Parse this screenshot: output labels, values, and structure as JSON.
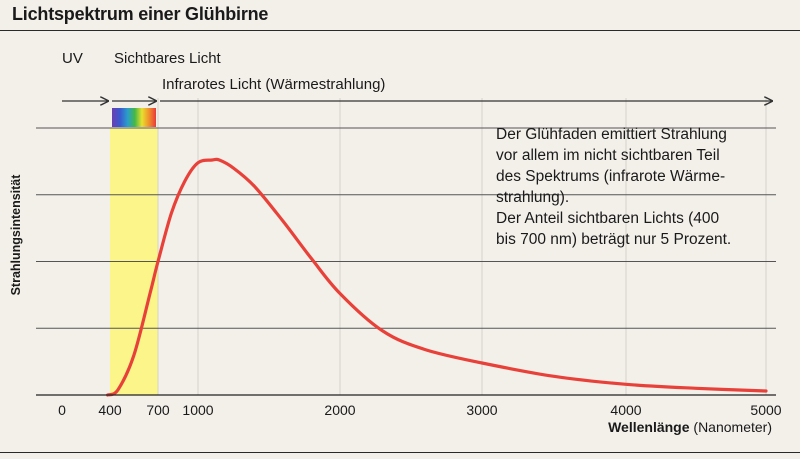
{
  "page_title": "Lichtspektrum einer Glühbirne",
  "annotation_lines": [
    "Der Glühfaden emittiert Strahlung",
    "vor allem im nicht sichtbaren Teil",
    "des Spektrums (infrarote Wärme-",
    "strahlung).",
    "Der Anteil sichtbaren Lichts (400",
    "bis 700 nm) beträgt nur 5 Prozent."
  ],
  "colors": {
    "curve": "#e8413a",
    "visible_band": "#fbf58a",
    "grid": "#555555",
    "axis": "#222222"
  },
  "chart_data": {
    "type": "line",
    "title": "Lichtspektrum einer Glühbirne",
    "xlabel_bold": "Wellenlänge",
    "xlabel_unit": "(Nanometer)",
    "ylabel": "Strahlungsintensität",
    "x_ticks": [
      0,
      400,
      700,
      1000,
      2000,
      3000,
      4000,
      5000
    ],
    "x_tick_labels": [
      "0",
      "400",
      "700",
      "1000",
      "2000",
      "3000",
      "4000",
      "5000"
    ],
    "xlim": [
      0,
      5000
    ],
    "ylim": [
      0,
      100
    ],
    "y_gridlines": [
      0,
      25,
      50,
      75,
      100
    ],
    "grid": true,
    "regions": [
      {
        "label": "UV",
        "from": 0,
        "to": 400
      },
      {
        "label": "Sichtbares Licht",
        "from": 400,
        "to": 700
      },
      {
        "label": "Infrarotes Licht (Wärmestrahlung)",
        "from": 700,
        "to": 5000
      }
    ],
    "series": [
      {
        "x": [
          380,
          450,
          550,
          650,
          700,
          800,
          900,
          1000,
          1100,
          1150,
          1250,
          1400,
          1600,
          1800,
          2000,
          2300,
          2600,
          3000,
          3500,
          4000,
          4500,
          5000
        ],
        "values": [
          0,
          2,
          15,
          38,
          50,
          68,
          80,
          87,
          88,
          88,
          85,
          78,
          65,
          51,
          38,
          24,
          17,
          12,
          7,
          4,
          2.5,
          1.5
        ]
      }
    ]
  }
}
